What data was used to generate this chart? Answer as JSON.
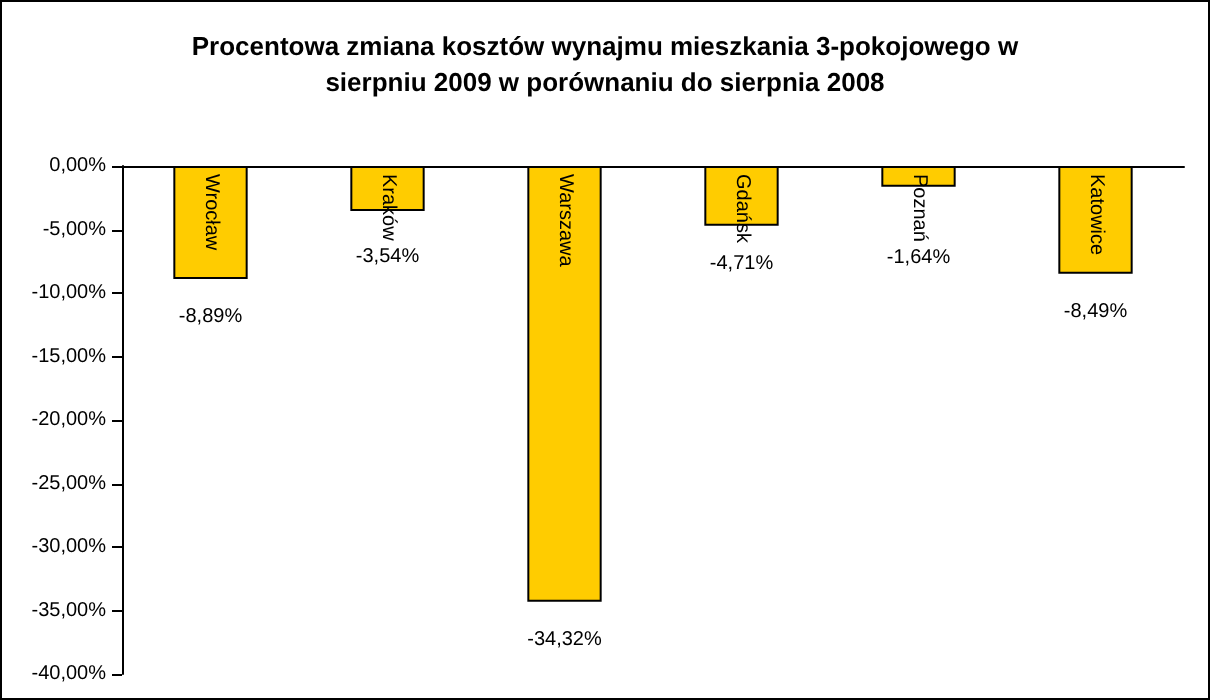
{
  "chart_data": {
    "type": "bar",
    "title": "Procentowa zmiana kosztów wynajmu mieszkania 3-pokojowego w\nsierpniu 2009 w porównaniu do sierpnia 2008",
    "categories": [
      "Wrocław",
      "Kraków",
      "Warszawa",
      "Gdańsk",
      "Poznań",
      "Katowice"
    ],
    "values": [
      -8.89,
      -3.54,
      -34.32,
      -4.71,
      -1.64,
      -8.49
    ],
    "value_labels": [
      "-8,89%",
      "-3,54%",
      "-34,32%",
      "-4,71%",
      "-1,64%",
      "-8,49%"
    ],
    "color": "#ffcc00",
    "ylim": [
      -40,
      0
    ],
    "yticks": [
      {
        "value": 0,
        "label": "0,00%"
      },
      {
        "value": -5,
        "label": "-5,00%"
      },
      {
        "value": -10,
        "label": "-10,00%"
      },
      {
        "value": -15,
        "label": "-15,00%"
      },
      {
        "value": -20,
        "label": "-20,00%"
      },
      {
        "value": -25,
        "label": "-25,00%"
      },
      {
        "value": -30,
        "label": "-30,00%"
      },
      {
        "value": -35,
        "label": "-35,00%"
      },
      {
        "value": -40,
        "label": "-40,00%"
      }
    ],
    "grid": false
  }
}
